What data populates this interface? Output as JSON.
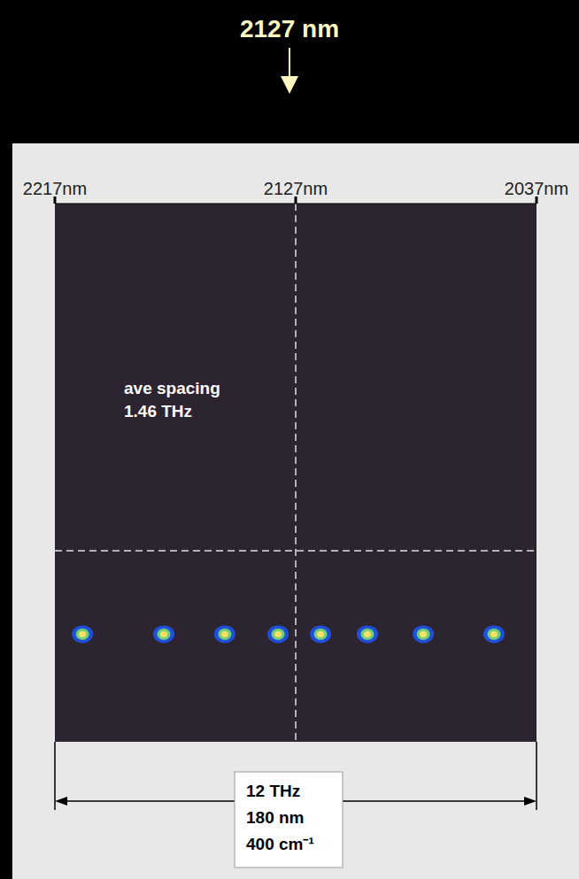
{
  "chart_data": {
    "type": "scatter",
    "title": "2127 nm",
    "annotation": [
      "ave spacing",
      "1.46 THz"
    ],
    "span_labels": [
      "12 THz",
      "180 nm",
      "400 cm⁻¹"
    ],
    "x": [
      2206.7,
      2176.3,
      2153.5,
      2133.6,
      2117.7,
      2100.2,
      2079.3,
      2052.9
    ],
    "values": [
      20,
      20,
      20,
      20,
      20,
      20,
      20,
      20
    ],
    "color": "#1f4fd8",
    "marker": "blob",
    "xlim": [
      2217,
      2037
    ],
    "xticks": [
      {
        "value": 2217,
        "label": "2217nm"
      },
      {
        "value": 2127,
        "label": "2127nm"
      },
      {
        "value": 2037,
        "label": "2037nm"
      }
    ],
    "ylim": [
      0,
      100
    ],
    "reference_x": 2127,
    "reference_y": 35.5,
    "tick_labels": "x",
    "grid": false
  }
}
